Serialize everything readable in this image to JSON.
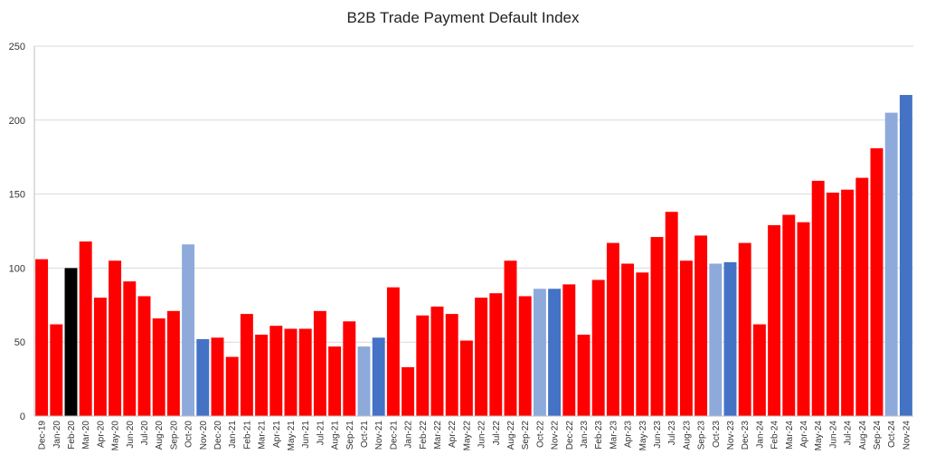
{
  "chart_data": {
    "type": "bar",
    "title": "B2B Trade Payment Default Index",
    "xlabel": "",
    "ylabel": "",
    "ylim": [
      0,
      250
    ],
    "yticks": [
      0,
      50,
      100,
      150,
      200,
      250
    ],
    "grid": true,
    "legend": "none",
    "categories": [
      "Dec-19",
      "Jan-20",
      "Feb-20",
      "Mar-20",
      "Apr-20",
      "May-20",
      "Jun-20",
      "Jul-20",
      "Aug-20",
      "Sep-20",
      "Oct-20",
      "Nov-20",
      "Dec-20",
      "Jan-21",
      "Feb-21",
      "Mar-21",
      "Apr-21",
      "May-21",
      "Jun-21",
      "Jul-21",
      "Aug-21",
      "Sep-21",
      "Oct-21",
      "Nov-21",
      "Dec-21",
      "Jan-22",
      "Feb-22",
      "Mar-22",
      "Apr-22",
      "May-22",
      "Jun-22",
      "Jul-22",
      "Aug-22",
      "Sep-22",
      "Oct-22",
      "Nov-22",
      "Dec-22",
      "Jan-23",
      "Feb-23",
      "Mar-23",
      "Apr-23",
      "May-23",
      "Jun-23",
      "Jul-23",
      "Aug-23",
      "Sep-23",
      "Oct-23",
      "Nov-23",
      "Dec-23",
      "Jan-24",
      "Feb-24",
      "Mar-24",
      "Apr-24",
      "May-24",
      "Jun-24",
      "Jul-24",
      "Aug-24",
      "Sep-24",
      "Oct-24",
      "Nov-24"
    ],
    "values": [
      106,
      62,
      100,
      118,
      80,
      105,
      91,
      81,
      66,
      71,
      116,
      52,
      53,
      40,
      69,
      55,
      61,
      59,
      59,
      71,
      47,
      64,
      47,
      53,
      87,
      33,
      68,
      74,
      69,
      51,
      80,
      83,
      105,
      81,
      86,
      86,
      89,
      55,
      92,
      117,
      103,
      97,
      121,
      138,
      105,
      122,
      103,
      104,
      117,
      62,
      129,
      136,
      131,
      159,
      151,
      153,
      161,
      181,
      205,
      217
    ],
    "bar_colors": [
      "#ff0000",
      "#ff0000",
      "#000000",
      "#ff0000",
      "#ff0000",
      "#ff0000",
      "#ff0000",
      "#ff0000",
      "#ff0000",
      "#ff0000",
      "#8eaadb",
      "#4472c4",
      "#ff0000",
      "#ff0000",
      "#ff0000",
      "#ff0000",
      "#ff0000",
      "#ff0000",
      "#ff0000",
      "#ff0000",
      "#ff0000",
      "#ff0000",
      "#8eaadb",
      "#4472c4",
      "#ff0000",
      "#ff0000",
      "#ff0000",
      "#ff0000",
      "#ff0000",
      "#ff0000",
      "#ff0000",
      "#ff0000",
      "#ff0000",
      "#ff0000",
      "#8eaadb",
      "#4472c4",
      "#ff0000",
      "#ff0000",
      "#ff0000",
      "#ff0000",
      "#ff0000",
      "#ff0000",
      "#ff0000",
      "#ff0000",
      "#ff0000",
      "#ff0000",
      "#8eaadb",
      "#4472c4",
      "#ff0000",
      "#ff0000",
      "#ff0000",
      "#ff0000",
      "#ff0000",
      "#ff0000",
      "#ff0000",
      "#ff0000",
      "#ff0000",
      "#ff0000",
      "#8eaadb",
      "#4472c4"
    ],
    "colors": {
      "default": "#ff0000",
      "highlight_black": "#000000",
      "light_blue": "#8eaadb",
      "blue": "#4472c4",
      "grid": "#d9d9d9",
      "axis": "#bfbfbf"
    }
  }
}
